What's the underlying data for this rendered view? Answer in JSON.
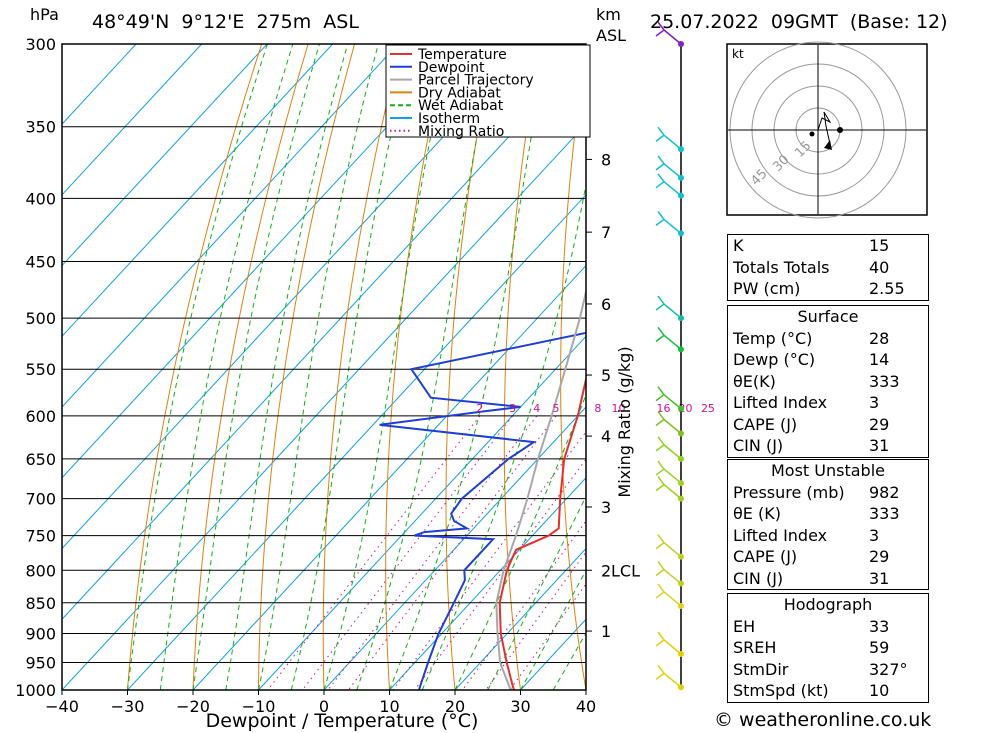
{
  "header": {
    "pressure_unit": "hPa",
    "location": "48°49'N  9°12'E  275m  ASL",
    "height_unit": "km",
    "height_unit2": "ASL",
    "datetime": "25.07.2022  09GMT  (Base: 12)"
  },
  "chart_data": {
    "type": "line",
    "chart_kind": "skew-T log-p",
    "xlabel": "Dewpoint / Temperature (°C)",
    "ylabel": "hPa",
    "mixing_ratio_label": "Mixing Ratio (g/kg)",
    "x_ticks": [
      "−40",
      "−30",
      "−20",
      "−10",
      "0",
      "10",
      "20",
      "30",
      "40"
    ],
    "pressure_levels": [
      300,
      350,
      400,
      450,
      500,
      550,
      600,
      650,
      700,
      750,
      800,
      850,
      900,
      950,
      1000
    ],
    "pressure_labels": [
      "300",
      "350",
      "400",
      "450",
      "500",
      "550",
      "600",
      "650",
      "700",
      "750",
      "800",
      "850",
      "900",
      "950",
      "1000"
    ],
    "km_ticks": [
      {
        "label": "8",
        "p": 372
      },
      {
        "label": "7",
        "p": 426
      },
      {
        "label": "6",
        "p": 487
      },
      {
        "label": "5",
        "p": 556
      },
      {
        "label": "4",
        "p": 623
      },
      {
        "label": "3",
        "p": 711
      },
      {
        "label": "2",
        "p": 800
      },
      {
        "label": "1",
        "p": 896
      }
    ],
    "lcl_label": "LCL",
    "lcl_p": 800,
    "mixing_ratio_ticks": [
      "2",
      "3",
      "4",
      "5",
      "8",
      "10",
      "16",
      "20",
      "25"
    ],
    "legend": [
      "Temperature",
      "Dewpoint",
      "Parcel Trajectory",
      "Dry Adiabat",
      "Wet Adiabat",
      "Isotherm",
      "Mixing Ratio"
    ],
    "colors": {
      "Temperature": "#e23030",
      "Dewpoint": "#1f3fd0",
      "Parcel Trajectory": "#a8a8a8",
      "Dry Adiabat": "#e08010",
      "Wet Adiabat": "#10b010",
      "Isotherm": "#10a0e0",
      "Mixing Ratio": "#d01090"
    },
    "series": [
      {
        "name": "Temperature",
        "points": [
          [
            1000,
            29
          ],
          [
            990,
            28
          ],
          [
            950,
            24
          ],
          [
            900,
            19
          ],
          [
            850,
            14.5
          ],
          [
            800,
            11
          ],
          [
            780,
            10
          ],
          [
            770,
            9.5
          ],
          [
            750,
            12.5
          ],
          [
            740,
            13
          ],
          [
            700,
            9
          ],
          [
            650,
            4
          ],
          [
            600,
            0
          ],
          [
            550,
            -5
          ],
          [
            500,
            -10
          ],
          [
            450,
            -17
          ],
          [
            430,
            -19
          ],
          [
            400,
            -24
          ],
          [
            350,
            -33
          ],
          [
            300,
            -43
          ]
        ]
      },
      {
        "name": "Dewpoint",
        "points": [
          [
            1000,
            14.5
          ],
          [
            990,
            14
          ],
          [
            950,
            12
          ],
          [
            900,
            9.5
          ],
          [
            850,
            7.5
          ],
          [
            815,
            6
          ],
          [
            800,
            4.5
          ],
          [
            755,
            4.5
          ],
          [
            750,
            -8
          ],
          [
            745,
            -7
          ],
          [
            740,
            -1
          ],
          [
            730,
            -4
          ],
          [
            720,
            -5.5
          ],
          [
            700,
            -6
          ],
          [
            650,
            -4.5
          ],
          [
            630,
            -3
          ],
          [
            610,
            -29
          ],
          [
            595,
            -15
          ],
          [
            590,
            -10
          ],
          [
            580,
            -25
          ],
          [
            550,
            -32
          ],
          [
            510,
            -8
          ],
          [
            495,
            -5
          ],
          [
            490,
            -10
          ],
          [
            455,
            0
          ],
          [
            440,
            -7
          ],
          [
            420,
            -14
          ],
          [
            405,
            -18
          ],
          [
            400,
            -23
          ],
          [
            390,
            -31
          ],
          [
            360,
            -29
          ],
          [
            340,
            -42
          ],
          [
            300,
            -36
          ]
        ]
      },
      {
        "name": "Parcel Trajectory",
        "points": [
          [
            1000,
            28.5
          ],
          [
            950,
            23
          ],
          [
            900,
            18.5
          ],
          [
            850,
            14
          ],
          [
            800,
            10.5
          ],
          [
            750,
            7.5
          ],
          [
            700,
            4
          ],
          [
            650,
            0
          ],
          [
            600,
            -4
          ],
          [
            550,
            -8.5
          ],
          [
            500,
            -13.5
          ],
          [
            450,
            -19.5
          ],
          [
            400,
            -26
          ],
          [
            350,
            -34
          ],
          [
            300,
            -43
          ]
        ]
      }
    ],
    "wind_barbs": [
      {
        "p": 300,
        "color": "#8020c0"
      },
      {
        "p": 365,
        "color": "#10c0d0"
      },
      {
        "p": 385,
        "color": "#10c0d0"
      },
      {
        "p": 398,
        "color": "#10c0d0"
      },
      {
        "p": 427,
        "color": "#10c0d0"
      },
      {
        "p": 500,
        "color": "#10c0a0"
      },
      {
        "p": 530,
        "color": "#10c040"
      },
      {
        "p": 592,
        "color": "#40c020"
      },
      {
        "p": 620,
        "color": "#80c020"
      },
      {
        "p": 650,
        "color": "#90d020"
      },
      {
        "p": 680,
        "color": "#a0d020"
      },
      {
        "p": 700,
        "color": "#a0d020"
      },
      {
        "p": 780,
        "color": "#c0d020"
      },
      {
        "p": 820,
        "color": "#c0d020"
      },
      {
        "p": 855,
        "color": "#e0d020"
      },
      {
        "p": 935,
        "color": "#e0d000"
      },
      {
        "p": 995,
        "color": "#e0d000"
      }
    ]
  },
  "hodograph": {
    "unit": "kt",
    "rings": [
      "15",
      "30",
      "45"
    ]
  },
  "indices": {
    "k": {
      "label": "K",
      "value": "15"
    },
    "tt": {
      "label": "Totals Totals",
      "value": "40"
    },
    "pw": {
      "label": "PW (cm)",
      "value": "2.55"
    }
  },
  "surface": {
    "title": "Surface",
    "temp": {
      "label": "Temp (°C)",
      "value": "28"
    },
    "dewp": {
      "label": "Dewp (°C)",
      "value": "14"
    },
    "theta": {
      "label": "θE(K)",
      "value": "333"
    },
    "li": {
      "label": "Lifted Index",
      "value": "3"
    },
    "cape": {
      "label": "CAPE (J)",
      "value": "29"
    },
    "cin": {
      "label": "CIN (J)",
      "value": "31"
    }
  },
  "most_unstable": {
    "title": "Most Unstable",
    "pressure": {
      "label": "Pressure (mb)",
      "value": "982"
    },
    "theta": {
      "label": "θE (K)",
      "value": "333"
    },
    "li": {
      "label": "Lifted Index",
      "value": "3"
    },
    "cape": {
      "label": "CAPE (J)",
      "value": "29"
    },
    "cin": {
      "label": "CIN (J)",
      "value": "31"
    }
  },
  "hodo_table": {
    "title": "Hodograph",
    "eh": {
      "label": "EH",
      "value": "33"
    },
    "sreh": {
      "label": "SREH",
      "value": "59"
    },
    "stmdir": {
      "label": "StmDir",
      "value": "327°"
    },
    "stmspd": {
      "label": "StmSpd (kt)",
      "value": "10"
    }
  },
  "copyright": "© weatheronline.co.uk"
}
